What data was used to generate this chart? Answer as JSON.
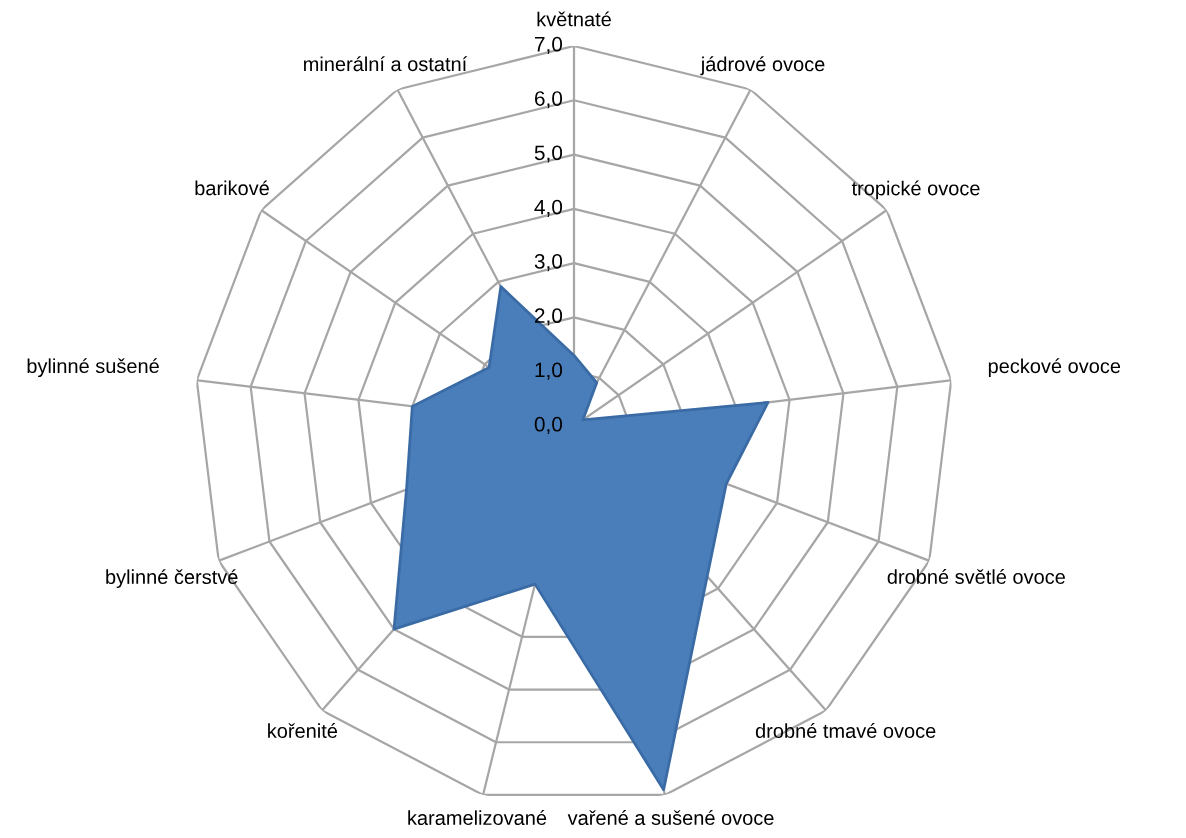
{
  "chart_data": {
    "type": "radar",
    "categories": [
      "květnaté",
      "jádrové ovoce",
      "tropické ovoce",
      "peckové ovoce",
      "drobné světlé ovoce",
      "drobné tmavé ovoce",
      "vařené a sušené ovoce",
      "karamelizované",
      "kořenité",
      "bylinné čerstvé",
      "bylinné sušené",
      "barikové",
      "minerální a ostatní"
    ],
    "series": [
      {
        "color": "#4a7ebb",
        "values": [
          1.3,
          0.9,
          0.2,
          3.6,
          3.0,
          3.7,
          6.9,
          3.0,
          5.0,
          3.3,
          3.0,
          1.9,
          2.9
        ]
      }
    ],
    "ylim": [
      0,
      7
    ],
    "yticks": [
      {
        "value": 0,
        "label": "0,0"
      },
      {
        "value": 1,
        "label": "1,0"
      },
      {
        "value": 2,
        "label": "2,0"
      },
      {
        "value": 3,
        "label": "3,0"
      },
      {
        "value": 4,
        "label": "4,0"
      },
      {
        "value": 5,
        "label": "5,0"
      },
      {
        "value": 6,
        "label": "6,0"
      },
      {
        "value": 7,
        "label": "7,0"
      }
    ],
    "grid": true
  }
}
